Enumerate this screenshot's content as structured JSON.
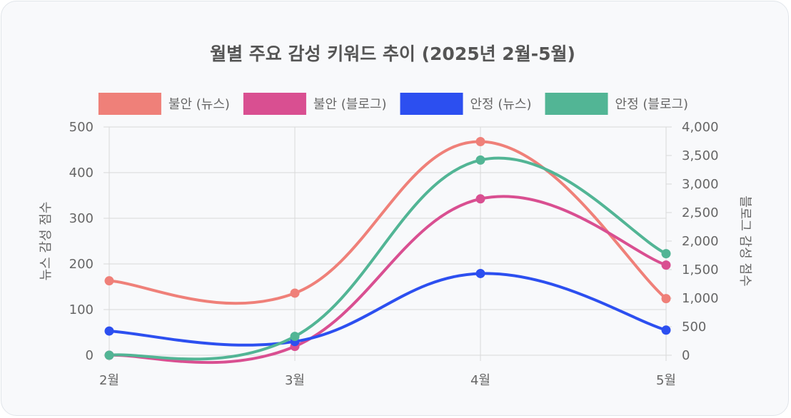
{
  "chart_data": {
    "type": "line",
    "title": "월별 주요 감성 키워드 추이 (2025년 2월-5월)",
    "categories": [
      "2월",
      "3월",
      "4월",
      "5월"
    ],
    "ylabel_left": "뉴스 감성 점수",
    "ylabel_right": "블로그 감성 점수",
    "ylim_left": [
      0,
      500
    ],
    "ylim_right": [
      0,
      4000
    ],
    "yticks_left": [
      "0",
      "100",
      "200",
      "300",
      "400",
      "500"
    ],
    "yticks_right": [
      "0",
      "500",
      "1,000",
      "1,500",
      "2,000",
      "2,500",
      "3,000",
      "3,500",
      "4,000"
    ],
    "grid": true,
    "legend_position": "top",
    "series": [
      {
        "name": "불안 (뉴스)",
        "axis": "left",
        "color": "#ef8079",
        "values": [
          163,
          136,
          468,
          124
        ]
      },
      {
        "name": "불안 (블로그)",
        "axis": "right",
        "color": "#d94f91",
        "values": [
          0,
          155,
          2740,
          1580
        ]
      },
      {
        "name": "안정 (뉴스)",
        "axis": "left",
        "color": "#2c4ff0",
        "values": [
          53,
          30,
          179,
          55
        ]
      },
      {
        "name": "안정 (블로그)",
        "axis": "right",
        "color": "#52b595",
        "values": [
          0,
          330,
          3420,
          1780
        ]
      }
    ]
  }
}
